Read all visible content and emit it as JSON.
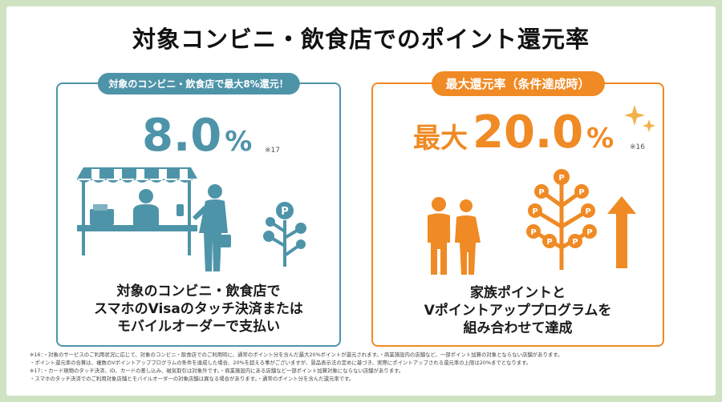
{
  "title": "対象コンビニ・飲食店でのポイント還元率",
  "left_panel": {
    "pill": "対象のコンビニ・飲食店で最大8%還元！",
    "rate_value": "8.0",
    "rate_unit": "%",
    "note": "※17",
    "caption_lines": [
      "対象のコンビニ・飲食店で",
      "スマホのVisaのタッチ決済または",
      "モバイルオーダーで支払い"
    ],
    "accent_color": "#4e94a9"
  },
  "right_panel": {
    "pill": "最大還元率（条件達成時）",
    "rate_prefix": "最大",
    "rate_value": "20.0",
    "rate_unit": "%",
    "note": "※16",
    "caption_lines": [
      "家族ポイントと",
      "Vポイントアッププログラムを",
      "組み合わせて達成"
    ],
    "accent_color": "#f08a24"
  },
  "footnotes": [
    "※16：・対象のサービスのご利用状況に応じて、対象のコンビニ・飲食店でのご利用時に、通常のポイント分を含んだ最大20%ポイントが還元されます。・商業施設内の店舗など、一部ポイント加算の対象とならない店舗があります。",
    "・ポイント還元率の合算は、複数のVポイントアッププログラムの条件を達成した場合、20%を超える事がございますが、景品表示法の定めに基づき、実際にポイントアップされる還元率の上限は20%までとなります。",
    "※17：・カード現物のタッチ決済、iD、カードの差し込み、磁気取引は対象外です。・商業施設内にある店舗など一部ポイント加算対象にならない店舗があります。",
    "・スマホのタッチ決済でのご利用対象店舗とモバイルオーダーの対象店舗は異なる場合があります。・通常のポイント分を含んだ還元率です。"
  ],
  "icons": [
    "store-counter-icon",
    "shopper-icon",
    "point-tree-icon",
    "family-icon",
    "growing-point-tree-icon",
    "up-arrow-icon",
    "sparkle-icon"
  ],
  "coin_letter": "P"
}
